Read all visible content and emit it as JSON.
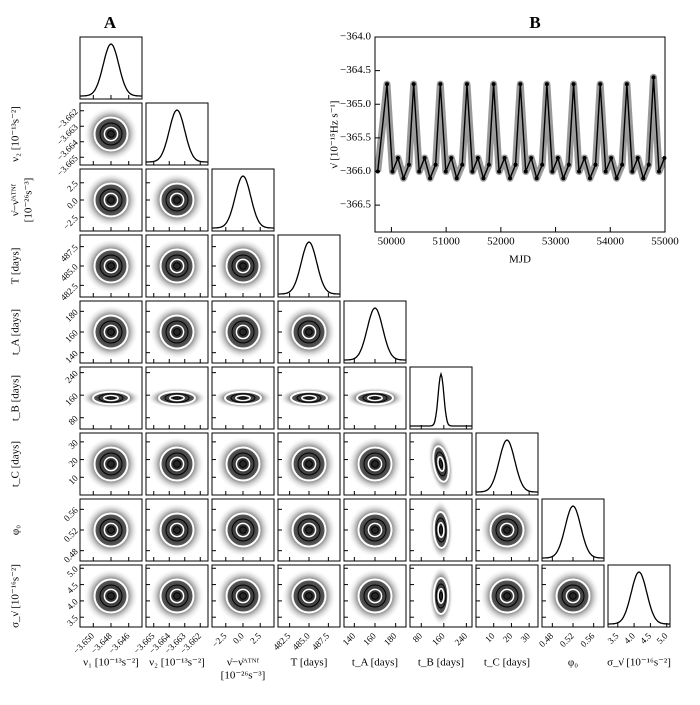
{
  "chart_data": [
    {
      "type": "corner",
      "panel_label": "A",
      "parameters": [
        {
          "label_lines": [
            "ν₁ [10⁻¹³s⁻²]"
          ],
          "lim": [
            -3.6515,
            -3.6445
          ],
          "ticks": [
            {
              "value": -3.65,
              "label": "−3.650"
            },
            {
              "value": -3.648,
              "label": "−3.648"
            },
            {
              "value": -3.646,
              "label": "−3.646"
            }
          ]
        },
        {
          "label_lines": [
            "ν₂ [10⁻¹³s⁻²]"
          ],
          "lim": [
            -3.6655,
            -3.6615
          ],
          "ticks": [
            {
              "value": -3.665,
              "label": "−3.665"
            },
            {
              "value": -3.664,
              "label": "−3.664"
            },
            {
              "value": -3.663,
              "label": "−3.663"
            },
            {
              "value": -3.662,
              "label": "−3.662"
            }
          ]
        },
        {
          "label_lines": [
            "ν̇−ν̇ᴬᵀᴺᶠ",
            "[10⁻²⁶s⁻³]"
          ],
          "lim": [
            -4.5,
            4.5
          ],
          "ticks": [
            {
              "value": -2.5,
              "label": "−2.5"
            },
            {
              "value": 0,
              "label": "0.0"
            },
            2.5
          ]
        },
        {
          "label_lines": [
            "T [days]"
          ],
          "lim": [
            481,
            489
          ],
          "ticks": [
            482.5,
            {
              "value": 485,
              "label": "485.0"
            },
            487.5
          ]
        },
        {
          "label_lines": [
            "t_A [days]"
          ],
          "lim": [
            130,
            190
          ],
          "ticks": [
            140,
            160,
            180
          ]
        },
        {
          "label_lines": [
            "t_B [days]"
          ],
          "lim": [
            40,
            260
          ],
          "ticks": [
            80,
            160,
            240
          ]
        },
        {
          "label_lines": [
            "t_C [days]"
          ],
          "lim": [
            0,
            35
          ],
          "ticks": [
            10,
            20,
            30
          ]
        },
        {
          "label_lines": [
            "φ₀"
          ],
          "lim": [
            0.46,
            0.58
          ],
          "ticks": [
            0.48,
            0.52,
            0.56
          ]
        },
        {
          "label_lines": [
            "σ_ν̇ [10⁻¹⁶s⁻²]"
          ],
          "lim": [
            3.2,
            5.1
          ],
          "ticks": [
            3.5,
            {
              "value": 4,
              "label": "4.0"
            },
            4.5,
            {
              "value": 5,
              "label": "5.0"
            }
          ]
        }
      ]
    },
    {
      "type": "line",
      "panel_label": "B",
      "x_label": "MJD",
      "y_label": "ν̇ [10⁻¹⁵Hz s⁻¹]",
      "xlim": [
        49700,
        55000
      ],
      "ylim": [
        -366.9,
        -364.0
      ],
      "xticks": [
        50000,
        51000,
        52000,
        53000,
        54000,
        55000
      ],
      "yticks": [
        {
          "value": -364,
          "label": "−364.0"
        },
        {
          "value": -364.5,
          "label": "−364.5"
        },
        {
          "value": -365,
          "label": "−365.0"
        },
        {
          "value": -365.5,
          "label": "−365.5"
        },
        {
          "value": -366,
          "label": "−366.0"
        },
        {
          "value": -366.5,
          "label": "−366.5"
        }
      ],
      "band_color": "#9a9a9a",
      "color": "#000000",
      "x": [
        49750,
        49920,
        50020,
        50120,
        50220,
        50320,
        50407,
        50507,
        50607,
        50707,
        50807,
        50894,
        50994,
        51094,
        51194,
        51294,
        51381,
        51481,
        51581,
        51681,
        51781,
        51868,
        51968,
        52068,
        52168,
        52268,
        52355,
        52455,
        52555,
        52655,
        52755,
        52842,
        52942,
        53042,
        53142,
        53242,
        53329,
        53429,
        53529,
        53629,
        53729,
        53816,
        53916,
        54016,
        54116,
        54216,
        54303,
        54403,
        54503,
        54603,
        54703,
        54790,
        54890,
        54990
      ],
      "values": [
        -366.0,
        -364.7,
        -366.0,
        -365.8,
        -366.1,
        -365.9,
        -364.7,
        -366.0,
        -365.8,
        -366.1,
        -365.9,
        -364.7,
        -366.0,
        -365.8,
        -366.1,
        -365.9,
        -364.7,
        -366.0,
        -365.8,
        -366.1,
        -365.9,
        -364.7,
        -366.0,
        -365.8,
        -366.1,
        -365.9,
        -364.7,
        -366.0,
        -365.8,
        -366.1,
        -365.9,
        -364.7,
        -366.0,
        -365.8,
        -366.1,
        -365.9,
        -364.7,
        -366.0,
        -365.8,
        -366.1,
        -365.9,
        -364.7,
        -366.0,
        -365.8,
        -366.1,
        -365.9,
        -364.7,
        -366.0,
        -365.8,
        -366.1,
        -365.9,
        -364.6,
        -366.0,
        -365.8
      ]
    }
  ]
}
